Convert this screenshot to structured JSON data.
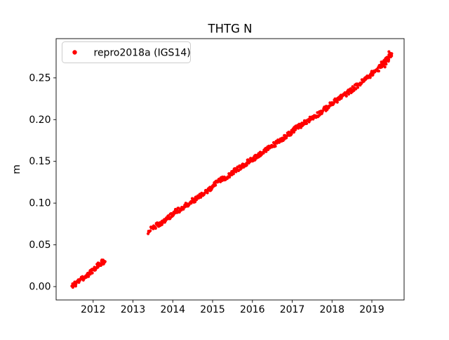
{
  "chart_data": {
    "type": "scatter",
    "title": "THTG N",
    "xlabel": "",
    "ylabel": "m",
    "xlim": [
      2011.07,
      2019.81
    ],
    "ylim": [
      -0.016,
      0.297
    ],
    "grid": false,
    "background_color": "#ffffff",
    "axis_color": "#000000",
    "legend": {
      "position": "upper left",
      "border_color": "#cccccc",
      "entries": [
        "repro2018a (IGS14)"
      ]
    },
    "xticks": {
      "values": [
        2012,
        2013,
        2014,
        2015,
        2016,
        2017,
        2018,
        2019
      ],
      "labels": [
        "2012",
        "2013",
        "2014",
        "2015",
        "2016",
        "2017",
        "2018",
        "2019"
      ]
    },
    "yticks": {
      "values": [
        0.0,
        0.05,
        0.1,
        0.15,
        0.2,
        0.25
      ],
      "labels": [
        "0.00",
        "0.05",
        "0.10",
        "0.15",
        "0.20",
        "0.25"
      ]
    },
    "series": [
      {
        "name": "repro2018a (IGS14)",
        "color": "#ff0000",
        "marker": "dot",
        "segments": [
          {
            "x": [
              2011.47,
              2011.55,
              2011.63,
              2011.72,
              2011.8,
              2011.88,
              2011.97,
              2012.05,
              2012.13,
              2012.22,
              2012.3
            ],
            "y": [
              0.0,
              0.003,
              0.006,
              0.009,
              0.012,
              0.015,
              0.018,
              0.022,
              0.026,
              0.029,
              0.03
            ]
          },
          {
            "x": [
              2013.38,
              2013.5,
              2013.58,
              2013.67,
              2013.75,
              2013.83,
              2013.92,
              2014.0,
              2014.08,
              2014.17,
              2014.25,
              2014.33,
              2014.42,
              2014.5,
              2014.58,
              2014.67,
              2014.75,
              2014.83,
              2014.92,
              2015.0,
              2015.08,
              2015.17,
              2015.25,
              2015.33,
              2015.42,
              2015.5,
              2015.58,
              2015.67,
              2015.75,
              2015.83,
              2015.92,
              2016.0,
              2016.08,
              2016.17,
              2016.25,
              2016.33,
              2016.42,
              2016.5,
              2016.58,
              2016.67,
              2016.75,
              2016.83,
              2016.92,
              2017.0,
              2017.08,
              2017.17,
              2017.25,
              2017.33,
              2017.42,
              2017.5,
              2017.58,
              2017.67,
              2017.75,
              2017.83,
              2017.92,
              2018.0,
              2018.08,
              2018.17,
              2018.25,
              2018.33,
              2018.42,
              2018.5,
              2018.58,
              2018.67,
              2018.75,
              2018.83,
              2018.92,
              2019.0,
              2019.08,
              2019.17,
              2019.25,
              2019.33,
              2019.42,
              2019.5
            ],
            "y": [
              0.066,
              0.07,
              0.073,
              0.075,
              0.078,
              0.081,
              0.084,
              0.087,
              0.09,
              0.092,
              0.095,
              0.097,
              0.1,
              0.103,
              0.105,
              0.108,
              0.11,
              0.113,
              0.116,
              0.12,
              0.123,
              0.126,
              0.129,
              0.131,
              0.134,
              0.137,
              0.139,
              0.142,
              0.144,
              0.147,
              0.15,
              0.153,
              0.155,
              0.158,
              0.161,
              0.163,
              0.166,
              0.169,
              0.171,
              0.174,
              0.177,
              0.18,
              0.183,
              0.186,
              0.189,
              0.192,
              0.194,
              0.197,
              0.2,
              0.202,
              0.205,
              0.207,
              0.21,
              0.213,
              0.216,
              0.219,
              0.222,
              0.225,
              0.228,
              0.23,
              0.233,
              0.236,
              0.239,
              0.242,
              0.245,
              0.248,
              0.252,
              0.255,
              0.258,
              0.261,
              0.265,
              0.27,
              0.275,
              0.279
            ]
          }
        ]
      }
    ]
  }
}
